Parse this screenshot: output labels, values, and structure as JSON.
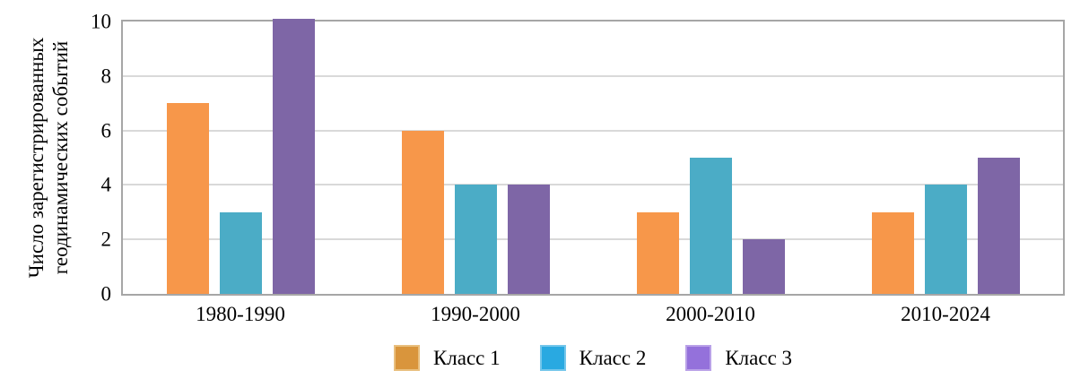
{
  "chart_data": {
    "type": "bar",
    "title": "",
    "ylabel": "Число зарегистрированных геодинамических событий",
    "ylabel_lines": [
      "Число зарегистрированных",
      "геодинамических событий"
    ],
    "xlabel": "",
    "categories": [
      "1980-1990",
      "1990-2000",
      "2000-2010",
      "2010-2024"
    ],
    "series": [
      {
        "name": "Класс 1",
        "values": [
          7,
          6,
          3,
          3
        ],
        "bar_color": "#F7974A",
        "legend_color": "#D9953C",
        "legend_border": "#E9BF7E"
      },
      {
        "name": "Класс 2",
        "values": [
          3,
          4,
          5,
          4
        ],
        "bar_color": "#4BACC6",
        "legend_color": "#29A9E1",
        "legend_border": "#74C6EB"
      },
      {
        "name": "Класс 3",
        "values": [
          10,
          4,
          2,
          5
        ],
        "bar_color": "#7E66A6",
        "legend_color": "#9471DB",
        "legend_border": "#B9A1E8"
      }
    ],
    "ylim": [
      0,
      10
    ],
    "yticks": [
      0,
      2,
      4,
      6,
      8,
      10
    ],
    "grid": "horizontal",
    "legend_position": "bottom",
    "axis_color": "#A6A6A6",
    "gridline_color": "#D9D9D9",
    "text_color": "#000000"
  }
}
